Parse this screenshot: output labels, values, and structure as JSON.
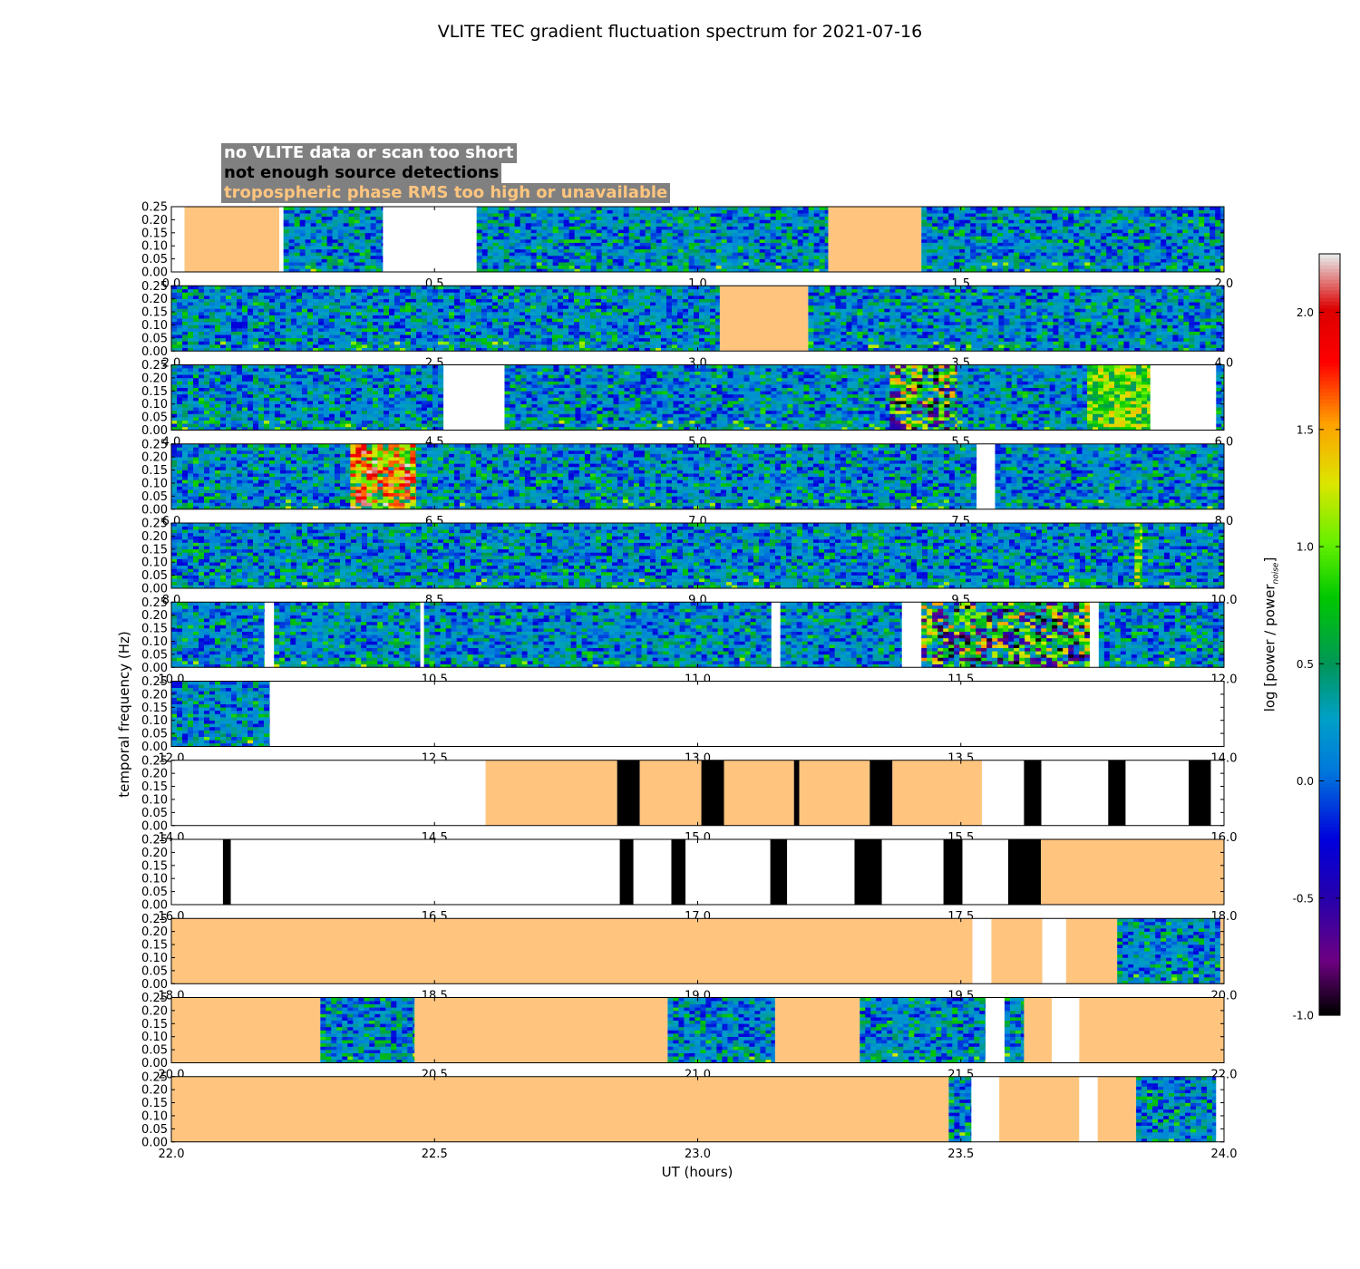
{
  "chart_data": {
    "type": "heatmap",
    "title": "VLITE TEC gradient fluctuation spectrum for 2021-07-16",
    "xlabel": "UT (hours)",
    "ylabel": "temporal frequency (Hz)",
    "colorbar": {
      "label": "log [power / power",
      "label_sub": "noise",
      "label_end": "]",
      "range": [
        -1.0,
        2.25
      ],
      "ticks": [
        "-1.0",
        "-0.5",
        "0.0",
        "0.5",
        "1.0",
        "1.5",
        "2.0"
      ],
      "tick_values": [
        -1.0,
        -0.5,
        0.0,
        0.5,
        1.0,
        1.5,
        2.0
      ]
    },
    "legend": [
      {
        "label": "no VLITE data or scan too short",
        "fill": "#ffffff"
      },
      {
        "label": "not enough source detections",
        "fill": "#000000"
      },
      {
        "label": "tropospheric phase RMS too high or unavailable",
        "fill": "#ffc57f"
      }
    ],
    "y_ticks": [
      "0.00",
      "0.05",
      "0.10",
      "0.15",
      "0.20",
      "0.25"
    ],
    "y_tick_values": [
      0,
      0.05,
      0.1,
      0.15,
      0.2,
      0.25
    ],
    "ylim": [
      0,
      0.25
    ],
    "panels": [
      {
        "xlim": [
          0,
          2
        ],
        "x_ticks": [
          "0.0",
          "0.5",
          "1.0",
          "1.5",
          "2.0"
        ],
        "segments": [
          {
            "start": 0.0,
            "end": 0.025,
            "kind": "nodata"
          },
          {
            "start": 0.025,
            "end": 0.205,
            "kind": "tropo"
          },
          {
            "start": 0.205,
            "end": 0.213,
            "kind": "nodata"
          },
          {
            "start": 0.213,
            "end": 0.402,
            "kind": "data",
            "level": "low"
          },
          {
            "start": 0.402,
            "end": 0.58,
            "kind": "nodata"
          },
          {
            "start": 0.58,
            "end": 1.248,
            "kind": "data",
            "level": "low"
          },
          {
            "start": 1.248,
            "end": 1.425,
            "kind": "tropo"
          },
          {
            "start": 1.425,
            "end": 2.0,
            "kind": "data",
            "level": "low"
          }
        ]
      },
      {
        "xlim": [
          2,
          4
        ],
        "x_ticks": [
          "2.0",
          "2.5",
          "3.0",
          "3.5",
          "4.0"
        ],
        "segments": [
          {
            "start": 2.0,
            "end": 3.042,
            "kind": "data",
            "level": "low"
          },
          {
            "start": 3.042,
            "end": 3.21,
            "kind": "tropo"
          },
          {
            "start": 3.21,
            "end": 4.0,
            "kind": "data",
            "level": "low"
          }
        ]
      },
      {
        "xlim": [
          4,
          6
        ],
        "x_ticks": [
          "4.0",
          "4.5",
          "5.0",
          "5.5",
          "6.0"
        ],
        "segments": [
          {
            "start": 4.0,
            "end": 4.517,
            "kind": "data",
            "level": "low"
          },
          {
            "start": 4.517,
            "end": 4.633,
            "kind": "nodata"
          },
          {
            "start": 4.633,
            "end": 5.365,
            "kind": "data",
            "level": "low"
          },
          {
            "start": 5.365,
            "end": 5.493,
            "kind": "data",
            "level": "high"
          },
          {
            "start": 5.493,
            "end": 5.74,
            "kind": "data",
            "level": "low"
          },
          {
            "start": 5.74,
            "end": 5.86,
            "kind": "data",
            "level": "med"
          },
          {
            "start": 5.86,
            "end": 5.985,
            "kind": "nodata"
          },
          {
            "start": 5.985,
            "end": 6.0,
            "kind": "data",
            "level": "low"
          }
        ]
      },
      {
        "xlim": [
          6,
          8
        ],
        "x_ticks": [
          "6.0",
          "6.5",
          "7.0",
          "7.5",
          "8.0"
        ],
        "segments": [
          {
            "start": 6.0,
            "end": 6.34,
            "kind": "data",
            "level": "low"
          },
          {
            "start": 6.34,
            "end": 6.465,
            "kind": "data",
            "level": "hot"
          },
          {
            "start": 6.465,
            "end": 7.53,
            "kind": "data",
            "level": "low"
          },
          {
            "start": 7.53,
            "end": 7.565,
            "kind": "nodata"
          },
          {
            "start": 7.565,
            "end": 8.0,
            "kind": "data",
            "level": "low"
          }
        ]
      },
      {
        "xlim": [
          8,
          10
        ],
        "x_ticks": [
          "8.0",
          "8.5",
          "9.0",
          "9.5",
          "10.0"
        ],
        "segments": [
          {
            "start": 8.0,
            "end": 9.83,
            "kind": "data",
            "level": "low"
          },
          {
            "start": 9.83,
            "end": 9.845,
            "kind": "data",
            "level": "med"
          },
          {
            "start": 9.845,
            "end": 10.0,
            "kind": "data",
            "level": "low"
          }
        ]
      },
      {
        "xlim": [
          10,
          12
        ],
        "x_ticks": [
          "10.0",
          "10.5",
          "11.0",
          "11.5",
          "12.0"
        ],
        "segments": [
          {
            "start": 10.0,
            "end": 10.177,
            "kind": "data",
            "level": "low"
          },
          {
            "start": 10.177,
            "end": 10.195,
            "kind": "nodata"
          },
          {
            "start": 10.195,
            "end": 10.473,
            "kind": "data",
            "level": "low"
          },
          {
            "start": 10.473,
            "end": 10.48,
            "kind": "nodata"
          },
          {
            "start": 10.48,
            "end": 11.14,
            "kind": "data",
            "level": "low"
          },
          {
            "start": 11.14,
            "end": 11.157,
            "kind": "nodata"
          },
          {
            "start": 11.157,
            "end": 11.388,
            "kind": "data",
            "level": "low"
          },
          {
            "start": 11.388,
            "end": 11.425,
            "kind": "nodata"
          },
          {
            "start": 11.425,
            "end": 11.745,
            "kind": "data",
            "level": "high"
          },
          {
            "start": 11.745,
            "end": 11.762,
            "kind": "nodata"
          },
          {
            "start": 11.762,
            "end": 12.0,
            "kind": "data",
            "level": "low"
          }
        ]
      },
      {
        "xlim": [
          12,
          14
        ],
        "x_ticks": [
          "12.0",
          "12.5",
          "13.0",
          "13.5",
          "14.0"
        ],
        "segments": [
          {
            "start": 12.0,
            "end": 12.187,
            "kind": "data",
            "level": "low"
          },
          {
            "start": 12.187,
            "end": 14.0,
            "kind": "nodata"
          }
        ]
      },
      {
        "xlim": [
          14,
          16
        ],
        "x_ticks": [
          "14.0",
          "14.5",
          "15.0",
          "15.5",
          "16.0"
        ],
        "segments": [
          {
            "start": 14.0,
            "end": 14.597,
            "kind": "nodata"
          },
          {
            "start": 14.597,
            "end": 14.847,
            "kind": "tropo"
          },
          {
            "start": 14.847,
            "end": 14.89,
            "kind": "nodetect"
          },
          {
            "start": 14.89,
            "end": 15.007,
            "kind": "tropo"
          },
          {
            "start": 15.007,
            "end": 15.05,
            "kind": "nodetect"
          },
          {
            "start": 15.05,
            "end": 15.183,
            "kind": "tropo"
          },
          {
            "start": 15.183,
            "end": 15.193,
            "kind": "nodetect"
          },
          {
            "start": 15.193,
            "end": 15.327,
            "kind": "tropo"
          },
          {
            "start": 15.327,
            "end": 15.37,
            "kind": "nodetect"
          },
          {
            "start": 15.37,
            "end": 15.54,
            "kind": "tropo"
          },
          {
            "start": 15.54,
            "end": 15.62,
            "kind": "nodata"
          },
          {
            "start": 15.62,
            "end": 15.653,
            "kind": "nodetect"
          },
          {
            "start": 15.653,
            "end": 15.78,
            "kind": "nodata"
          },
          {
            "start": 15.78,
            "end": 15.813,
            "kind": "nodetect"
          },
          {
            "start": 15.813,
            "end": 15.933,
            "kind": "nodata"
          },
          {
            "start": 15.933,
            "end": 15.975,
            "kind": "nodetect"
          },
          {
            "start": 15.975,
            "end": 16.0,
            "kind": "nodata"
          }
        ]
      },
      {
        "xlim": [
          16,
          18
        ],
        "x_ticks": [
          "16.0",
          "16.5",
          "17.0",
          "17.5",
          "18.0"
        ],
        "segments": [
          {
            "start": 16.0,
            "end": 16.098,
            "kind": "nodata"
          },
          {
            "start": 16.098,
            "end": 16.113,
            "kind": "nodetect"
          },
          {
            "start": 16.113,
            "end": 16.852,
            "kind": "nodata"
          },
          {
            "start": 16.852,
            "end": 16.878,
            "kind": "nodetect"
          },
          {
            "start": 16.878,
            "end": 16.95,
            "kind": "nodata"
          },
          {
            "start": 16.95,
            "end": 16.977,
            "kind": "nodetect"
          },
          {
            "start": 16.977,
            "end": 17.138,
            "kind": "nodata"
          },
          {
            "start": 17.138,
            "end": 17.17,
            "kind": "nodetect"
          },
          {
            "start": 17.17,
            "end": 17.298,
            "kind": "nodata"
          },
          {
            "start": 17.298,
            "end": 17.35,
            "kind": "nodetect"
          },
          {
            "start": 17.35,
            "end": 17.467,
            "kind": "nodata"
          },
          {
            "start": 17.467,
            "end": 17.503,
            "kind": "nodetect"
          },
          {
            "start": 17.503,
            "end": 17.59,
            "kind": "nodata"
          },
          {
            "start": 17.59,
            "end": 17.652,
            "kind": "nodetect"
          },
          {
            "start": 17.652,
            "end": 18.0,
            "kind": "tropo"
          }
        ]
      },
      {
        "xlim": [
          18,
          20
        ],
        "x_ticks": [
          "18.0",
          "18.5",
          "19.0",
          "19.5",
          "20.0"
        ],
        "segments": [
          {
            "start": 18.0,
            "end": 19.522,
            "kind": "tropo"
          },
          {
            "start": 19.522,
            "end": 19.558,
            "kind": "nodata"
          },
          {
            "start": 19.558,
            "end": 19.655,
            "kind": "tropo"
          },
          {
            "start": 19.655,
            "end": 19.7,
            "kind": "nodata"
          },
          {
            "start": 19.7,
            "end": 19.797,
            "kind": "tropo"
          },
          {
            "start": 19.797,
            "end": 19.993,
            "kind": "data",
            "level": "low"
          },
          {
            "start": 19.993,
            "end": 20.0,
            "kind": "tropo"
          }
        ]
      },
      {
        "xlim": [
          20,
          22
        ],
        "x_ticks": [
          "20.0",
          "20.5",
          "21.0",
          "21.5",
          "22.0"
        ],
        "segments": [
          {
            "start": 20.0,
            "end": 20.283,
            "kind": "tropo"
          },
          {
            "start": 20.283,
            "end": 20.462,
            "kind": "data",
            "level": "low"
          },
          {
            "start": 20.462,
            "end": 20.943,
            "kind": "tropo"
          },
          {
            "start": 20.943,
            "end": 21.147,
            "kind": "data",
            "level": "low"
          },
          {
            "start": 21.147,
            "end": 21.308,
            "kind": "tropo"
          },
          {
            "start": 21.308,
            "end": 21.547,
            "kind": "data",
            "level": "low"
          },
          {
            "start": 21.547,
            "end": 21.583,
            "kind": "nodata"
          },
          {
            "start": 21.583,
            "end": 21.62,
            "kind": "data",
            "level": "low"
          },
          {
            "start": 21.62,
            "end": 21.673,
            "kind": "tropo"
          },
          {
            "start": 21.673,
            "end": 21.725,
            "kind": "nodata"
          },
          {
            "start": 21.725,
            "end": 22.0,
            "kind": "tropo"
          }
        ]
      },
      {
        "xlim": [
          22,
          24
        ],
        "x_ticks": [
          "22.0",
          "22.5",
          "23.0",
          "23.5",
          "24.0"
        ],
        "segments": [
          {
            "start": 22.0,
            "end": 23.477,
            "kind": "tropo"
          },
          {
            "start": 23.477,
            "end": 23.52,
            "kind": "data",
            "level": "low"
          },
          {
            "start": 23.52,
            "end": 23.573,
            "kind": "nodata"
          },
          {
            "start": 23.573,
            "end": 23.725,
            "kind": "tropo"
          },
          {
            "start": 23.725,
            "end": 23.76,
            "kind": "nodata"
          },
          {
            "start": 23.76,
            "end": 23.833,
            "kind": "tropo"
          },
          {
            "start": 23.833,
            "end": 23.985,
            "kind": "data",
            "level": "low"
          },
          {
            "start": 23.985,
            "end": 24.0,
            "kind": "nodata"
          }
        ]
      }
    ]
  },
  "colors": {
    "nodata": "#ffffff",
    "nodetect": "#000000",
    "tropo": "#ffc57f",
    "legend_bg": "#808080"
  }
}
